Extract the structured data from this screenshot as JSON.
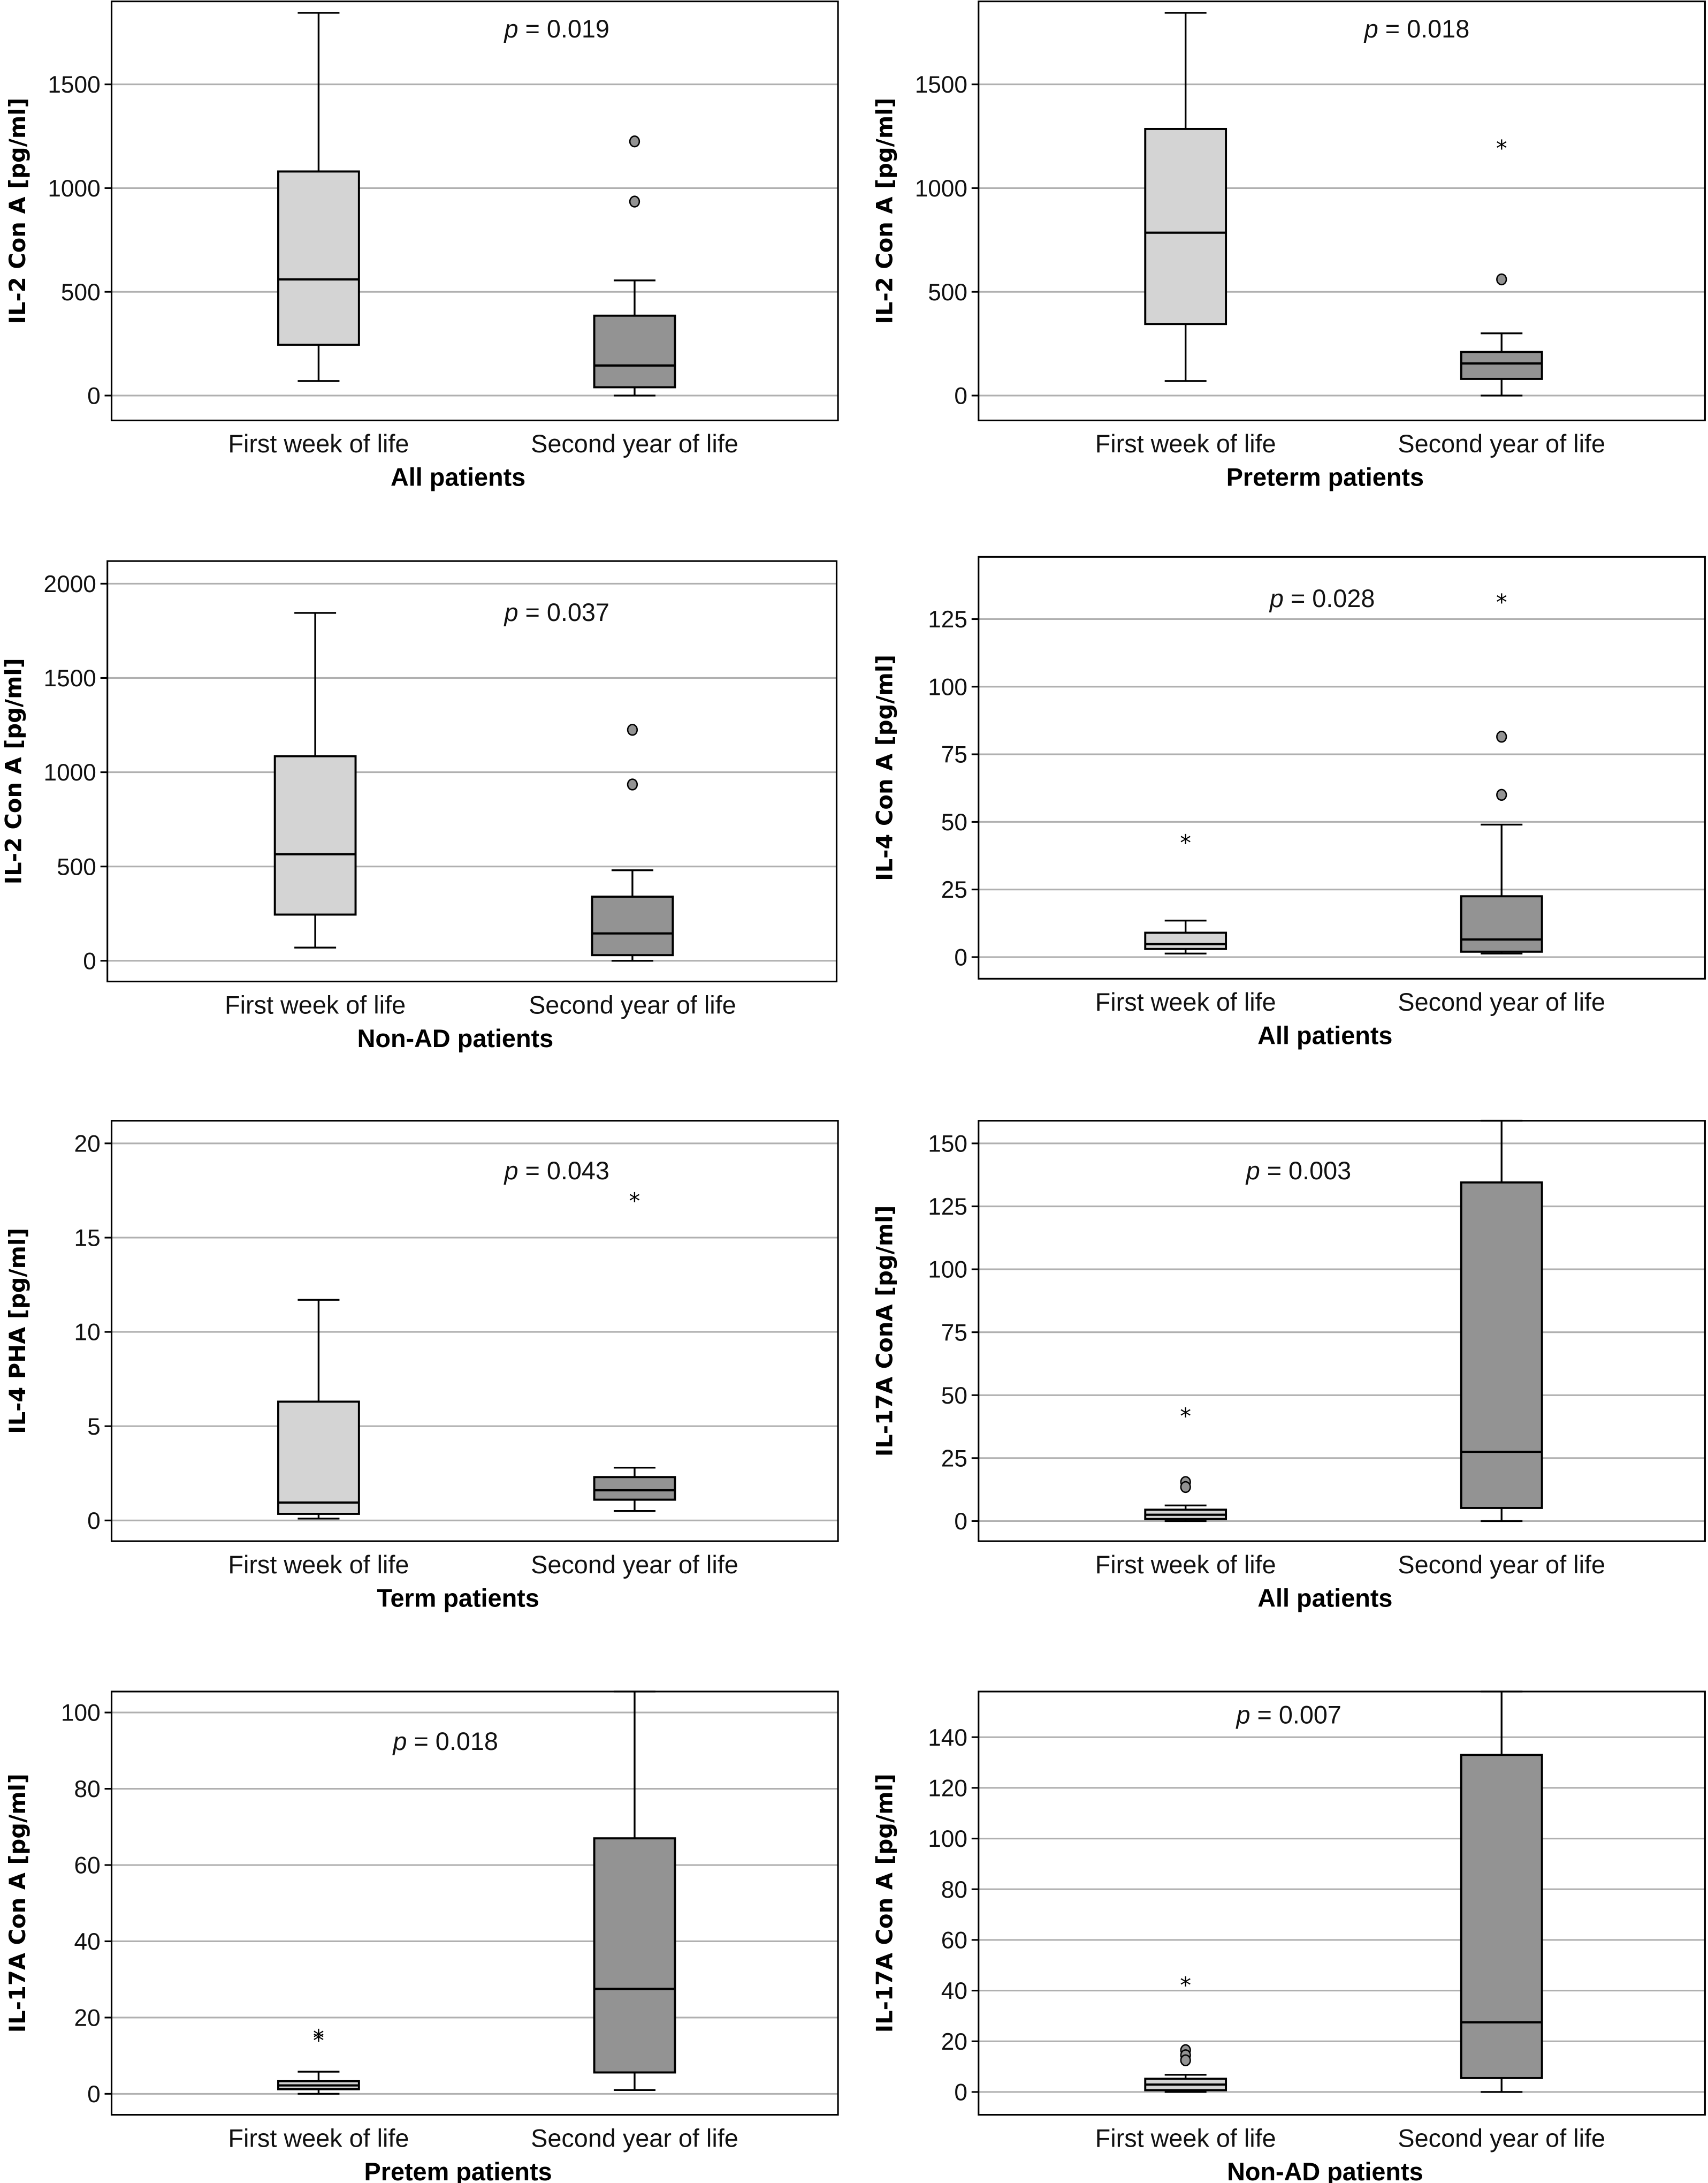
{
  "figure": {
    "colors": {
      "first_week_fill": "#d4d4d4",
      "second_year_fill": "#939393",
      "grid": "#b0b0b0",
      "outlier_fill": "#939393"
    }
  },
  "chart_data": [
    {
      "type": "box",
      "title": "",
      "ylabel": "IL-2 Con A [pg/ml]",
      "xlabel": "All patients",
      "annotation": "p = 0.019",
      "categories": [
        "First week of life",
        "Second year of life"
      ],
      "yticks": [
        0,
        500,
        1000,
        1500
      ],
      "ylim": [
        -120,
        1900
      ],
      "grid": true,
      "boxes": [
        {
          "category": "First week of life",
          "min": 70,
          "q1": 245,
          "median": 560,
          "q3": 1080,
          "max": 1845,
          "outliers": [],
          "extremes": []
        },
        {
          "category": "Second year of life",
          "min": 0,
          "q1": 40,
          "median": 145,
          "q3": 385,
          "max": 555,
          "outliers": [
            1225,
            935
          ],
          "extremes": []
        }
      ]
    },
    {
      "type": "box",
      "title": "",
      "ylabel": "IL-2 Con A [pg/ml]",
      "xlabel": "Preterm patients",
      "annotation": "p = 0.018",
      "categories": [
        "First week of life",
        "Second year of life"
      ],
      "yticks": [
        0,
        500,
        1000,
        1500
      ],
      "ylim": [
        -120,
        1900
      ],
      "grid": true,
      "boxes": [
        {
          "category": "First week of life",
          "min": 70,
          "q1": 345,
          "median": 785,
          "q3": 1285,
          "max": 1845,
          "outliers": [],
          "extremes": []
        },
        {
          "category": "Second year of life",
          "min": 0,
          "q1": 80,
          "median": 155,
          "q3": 210,
          "max": 300,
          "outliers": [
            560
          ],
          "extremes": [
            1215
          ]
        }
      ]
    },
    {
      "type": "box",
      "title": "",
      "ylabel": "IL-2 Con A [pg/ml]",
      "xlabel": "Non-AD patients",
      "annotation": "p = 0.037",
      "categories": [
        "First week of life",
        "Second year of life"
      ],
      "yticks": [
        0,
        500,
        1000,
        1500,
        2000
      ],
      "ylim": [
        -110,
        2120
      ],
      "grid": true,
      "boxes": [
        {
          "category": "First week of life",
          "min": 70,
          "q1": 245,
          "median": 565,
          "q3": 1085,
          "max": 1845,
          "outliers": [],
          "extremes": []
        },
        {
          "category": "Second year of life",
          "min": 0,
          "q1": 30,
          "median": 145,
          "q3": 340,
          "max": 480,
          "outliers": [
            1225,
            935
          ],
          "extremes": []
        }
      ]
    },
    {
      "type": "box",
      "title": "",
      "ylabel": "IL-4 Con A [pg/ml]",
      "xlabel": "All patients",
      "annotation": "p = 0.028",
      "categories": [
        "First week of life",
        "Second year of life"
      ],
      "yticks": [
        0,
        25,
        50,
        75,
        100,
        125
      ],
      "ylim": [
        -8,
        148
      ],
      "grid": true,
      "boxes": [
        {
          "category": "First week of life",
          "min": 1.3,
          "q1": 3,
          "median": 4.8,
          "q3": 9,
          "max": 13.5,
          "outliers": [],
          "extremes": [
            44
          ]
        },
        {
          "category": "Second year of life",
          "min": 1.3,
          "q1": 2,
          "median": 6.5,
          "q3": 22.5,
          "max": 49,
          "outliers": [
            81.5,
            60
          ],
          "extremes": [
            133
          ]
        }
      ]
    },
    {
      "type": "box",
      "title": "",
      "ylabel": "IL-4 PHA [pg/ml]",
      "xlabel": "Term patients",
      "annotation": "p = 0.043",
      "categories": [
        "First week of life",
        "Second year of life"
      ],
      "yticks": [
        0,
        5,
        10,
        15,
        20
      ],
      "ylim": [
        -1.1,
        21.2
      ],
      "grid": true,
      "boxes": [
        {
          "category": "First week of life",
          "min": 0.1,
          "q1": 0.35,
          "median": 0.95,
          "q3": 6.3,
          "max": 11.7,
          "outliers": [],
          "extremes": []
        },
        {
          "category": "Second year of life",
          "min": 0.5,
          "q1": 1.1,
          "median": 1.6,
          "q3": 2.3,
          "max": 2.8,
          "outliers": [],
          "extremes": [
            17.2
          ]
        }
      ]
    },
    {
      "type": "box",
      "title": "",
      "ylabel": "IL-17A ConA [pg/ml]",
      "xlabel": "All patients",
      "annotation": "p = 0.003",
      "categories": [
        "First week of life",
        "Second year of life"
      ],
      "yticks": [
        0,
        25,
        50,
        75,
        100,
        125,
        150
      ],
      "ylim": [
        -8,
        159
      ],
      "grid": true,
      "boxes": [
        {
          "category": "First week of life",
          "min": 0,
          "q1": 0.8,
          "median": 2.5,
          "q3": 4.5,
          "max": 6.2,
          "outliers": [
            15.5,
            13.5
          ],
          "extremes": [
            43.5
          ]
        },
        {
          "category": "Second year of life",
          "min": 0,
          "q1": 5.2,
          "median": 27.5,
          "q3": 134.5,
          "max": 159,
          "outliers": [],
          "extremes": []
        }
      ]
    },
    {
      "type": "box",
      "title": "",
      "ylabel": "IL-17A Con A [pg/ml]",
      "xlabel": "Pretem patients",
      "annotation": "p = 0.018",
      "categories": [
        "First week of life",
        "Second year of life"
      ],
      "yticks": [
        0,
        20,
        40,
        60,
        80,
        100
      ],
      "ylim": [
        -5.5,
        105.5
      ],
      "grid": true,
      "boxes": [
        {
          "category": "First week of life",
          "min": 0,
          "q1": 1.2,
          "median": 2.2,
          "q3": 3.3,
          "max": 5.8,
          "outliers": [],
          "extremes": [
            16,
            15.2
          ]
        },
        {
          "category": "Second year of life",
          "min": 1,
          "q1": 5.6,
          "median": 27.5,
          "q3": 67,
          "max": 105.5,
          "outliers": [],
          "extremes": []
        }
      ]
    },
    {
      "type": "box",
      "title": "",
      "ylabel": "IL-17A Con A [pg/ml]",
      "xlabel": "Non-AD patients",
      "annotation": "p = 0.007",
      "categories": [
        "First week of life",
        "Second year of life"
      ],
      "yticks": [
        0,
        20,
        40,
        60,
        80,
        100,
        120,
        140
      ],
      "ylim": [
        -9,
        158
      ],
      "grid": true,
      "boxes": [
        {
          "category": "First week of life",
          "min": 0,
          "q1": 0.7,
          "median": 2.9,
          "q3": 5.2,
          "max": 6.8,
          "outliers": [
            16.5,
            14.5,
            12.5
          ],
          "extremes": [
            44
          ]
        },
        {
          "category": "Second year of life",
          "min": 0,
          "q1": 5.5,
          "median": 27.5,
          "q3": 133,
          "max": 158,
          "outliers": [],
          "extremes": []
        }
      ]
    }
  ]
}
